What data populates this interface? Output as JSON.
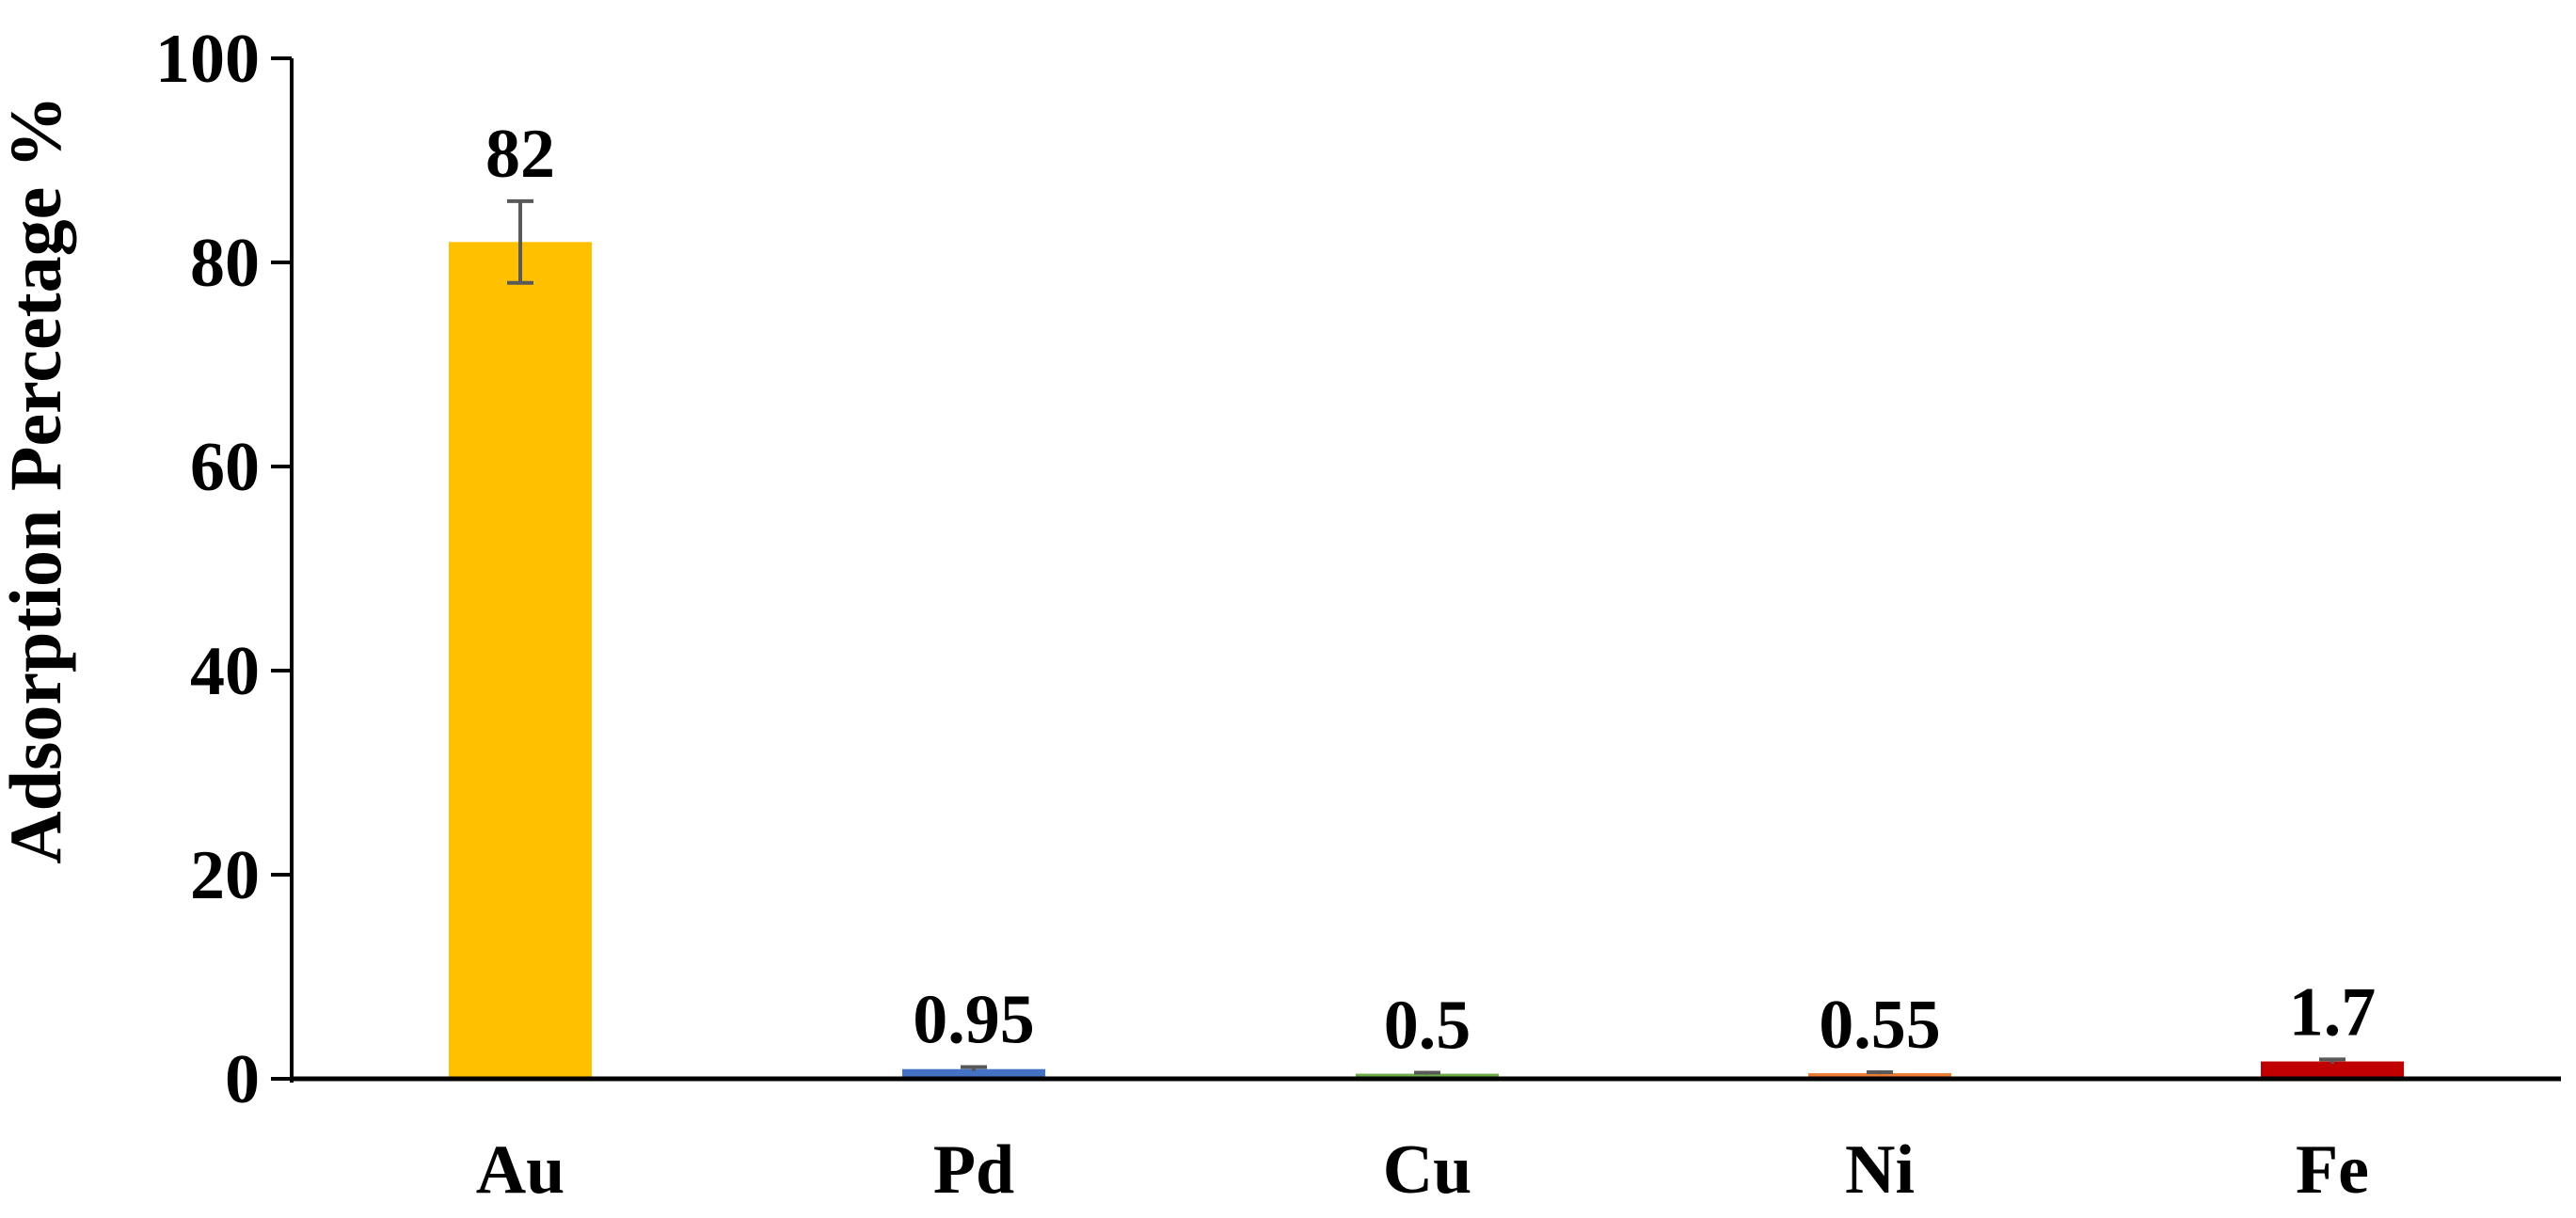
{
  "chart_data": {
    "type": "bar",
    "title": "",
    "xlabel": "",
    "ylabel": "Adsorption Percetage %",
    "ylim": [
      0,
      100
    ],
    "yticks": [
      0,
      20,
      40,
      60,
      80,
      100
    ],
    "ytick_labels": [
      "0",
      "20",
      "40",
      "60",
      "80",
      "100"
    ],
    "categories": [
      "Au",
      "Pd",
      "Cu",
      "Ni",
      "Fe"
    ],
    "values": [
      82,
      0.95,
      0.5,
      0.55,
      1.7
    ],
    "data_labels": [
      "82",
      "0.95",
      "0.5",
      "0.55",
      "1.7"
    ],
    "error": [
      4,
      0.2,
      0.1,
      0.1,
      0.2
    ],
    "colors": [
      "#FFC000",
      "#4472C4",
      "#70AD47",
      "#ED7D31",
      "#C00000"
    ],
    "error_bar_color": "#595959",
    "grid": false,
    "legend": "none"
  }
}
